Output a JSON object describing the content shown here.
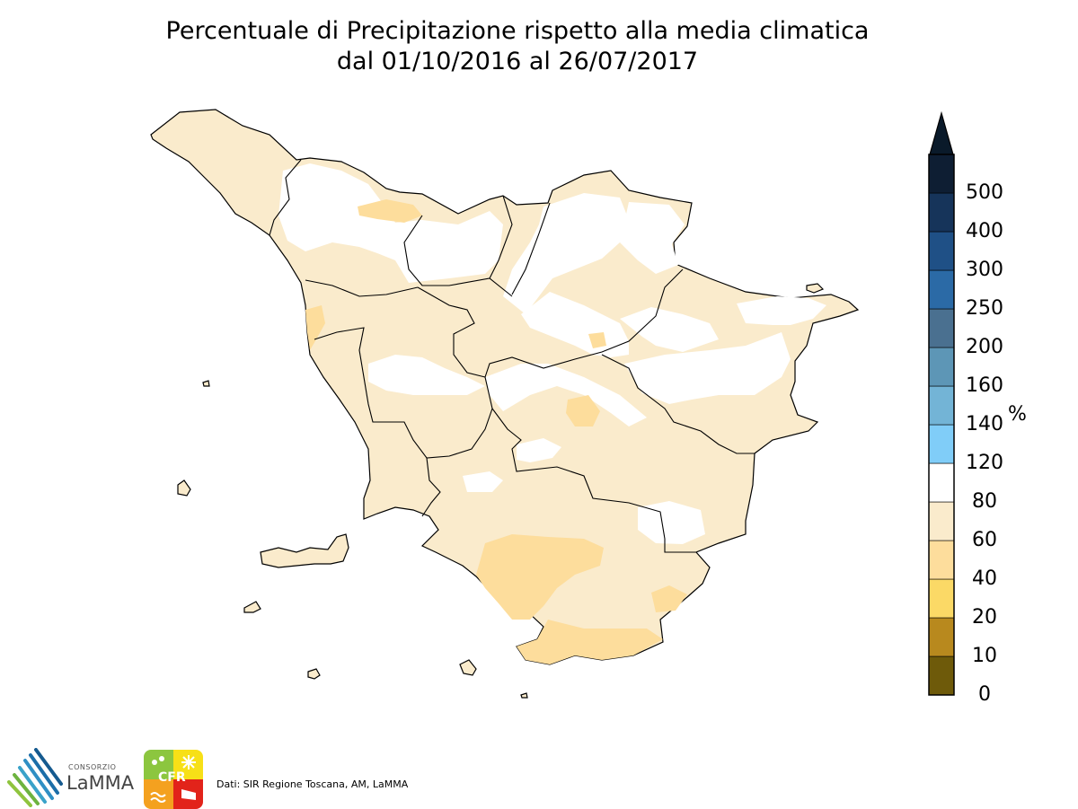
{
  "title": {
    "line1": "Percentuale di Precipitazione rispetto alla media climatica",
    "line2": "dal 01/10/2016 al 26/07/2017"
  },
  "colorbar": {
    "unit": "%",
    "ticks": [
      "0",
      "10",
      "20",
      "40",
      "60",
      "80",
      "120",
      "140",
      "160",
      "200",
      "250",
      "300",
      "400",
      "500"
    ],
    "colors": [
      "#6e5a0a",
      "#b8891e",
      "#fbd966",
      "#fddd9c",
      "#faebcc",
      "#ffffff",
      "#80cdf8",
      "#73b4d6",
      "#5d96b6",
      "#4a7090",
      "#2b6aa6",
      "#1f5086",
      "#16345a",
      "#0e1e33"
    ]
  },
  "colors": {
    "class_60_80": "#faebcc",
    "class_40_60": "#fddd9c",
    "class_80_120": "#ffffff",
    "border": "#000000"
  },
  "footer": {
    "lamma_small": "CONSORZIO",
    "lamma_big": "LaMMA",
    "cfr_label": "CFR",
    "sources": "Dati: SIR Regione Toscana, AM, LaMMA"
  }
}
